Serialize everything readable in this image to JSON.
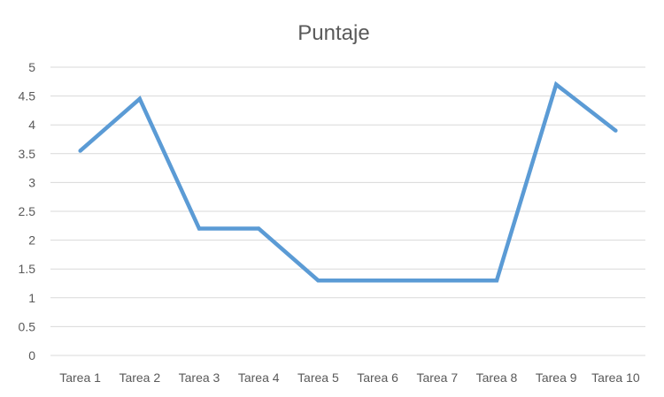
{
  "chart_data": {
    "type": "line",
    "title": "Puntaje",
    "xlabel": "",
    "ylabel": "",
    "categories": [
      "Tarea 1",
      "Tarea 2",
      "Tarea 3",
      "Tarea 4",
      "Tarea 5",
      "Tarea 6",
      "Tarea 7",
      "Tarea 8",
      "Tarea 9",
      "Tarea 10"
    ],
    "series": [
      {
        "values": [
          3.55,
          4.45,
          2.2,
          2.2,
          1.3,
          1.3,
          1.3,
          1.3,
          4.7,
          3.9
        ],
        "color": "#5b9bd5"
      }
    ],
    "ylim": [
      0,
      5
    ],
    "yticks": [
      "0",
      "0.5",
      "1",
      "1.5",
      "2",
      "2.5",
      "3",
      "3.5",
      "4",
      "4.5",
      "5"
    ],
    "grid": true,
    "legend": "none"
  }
}
